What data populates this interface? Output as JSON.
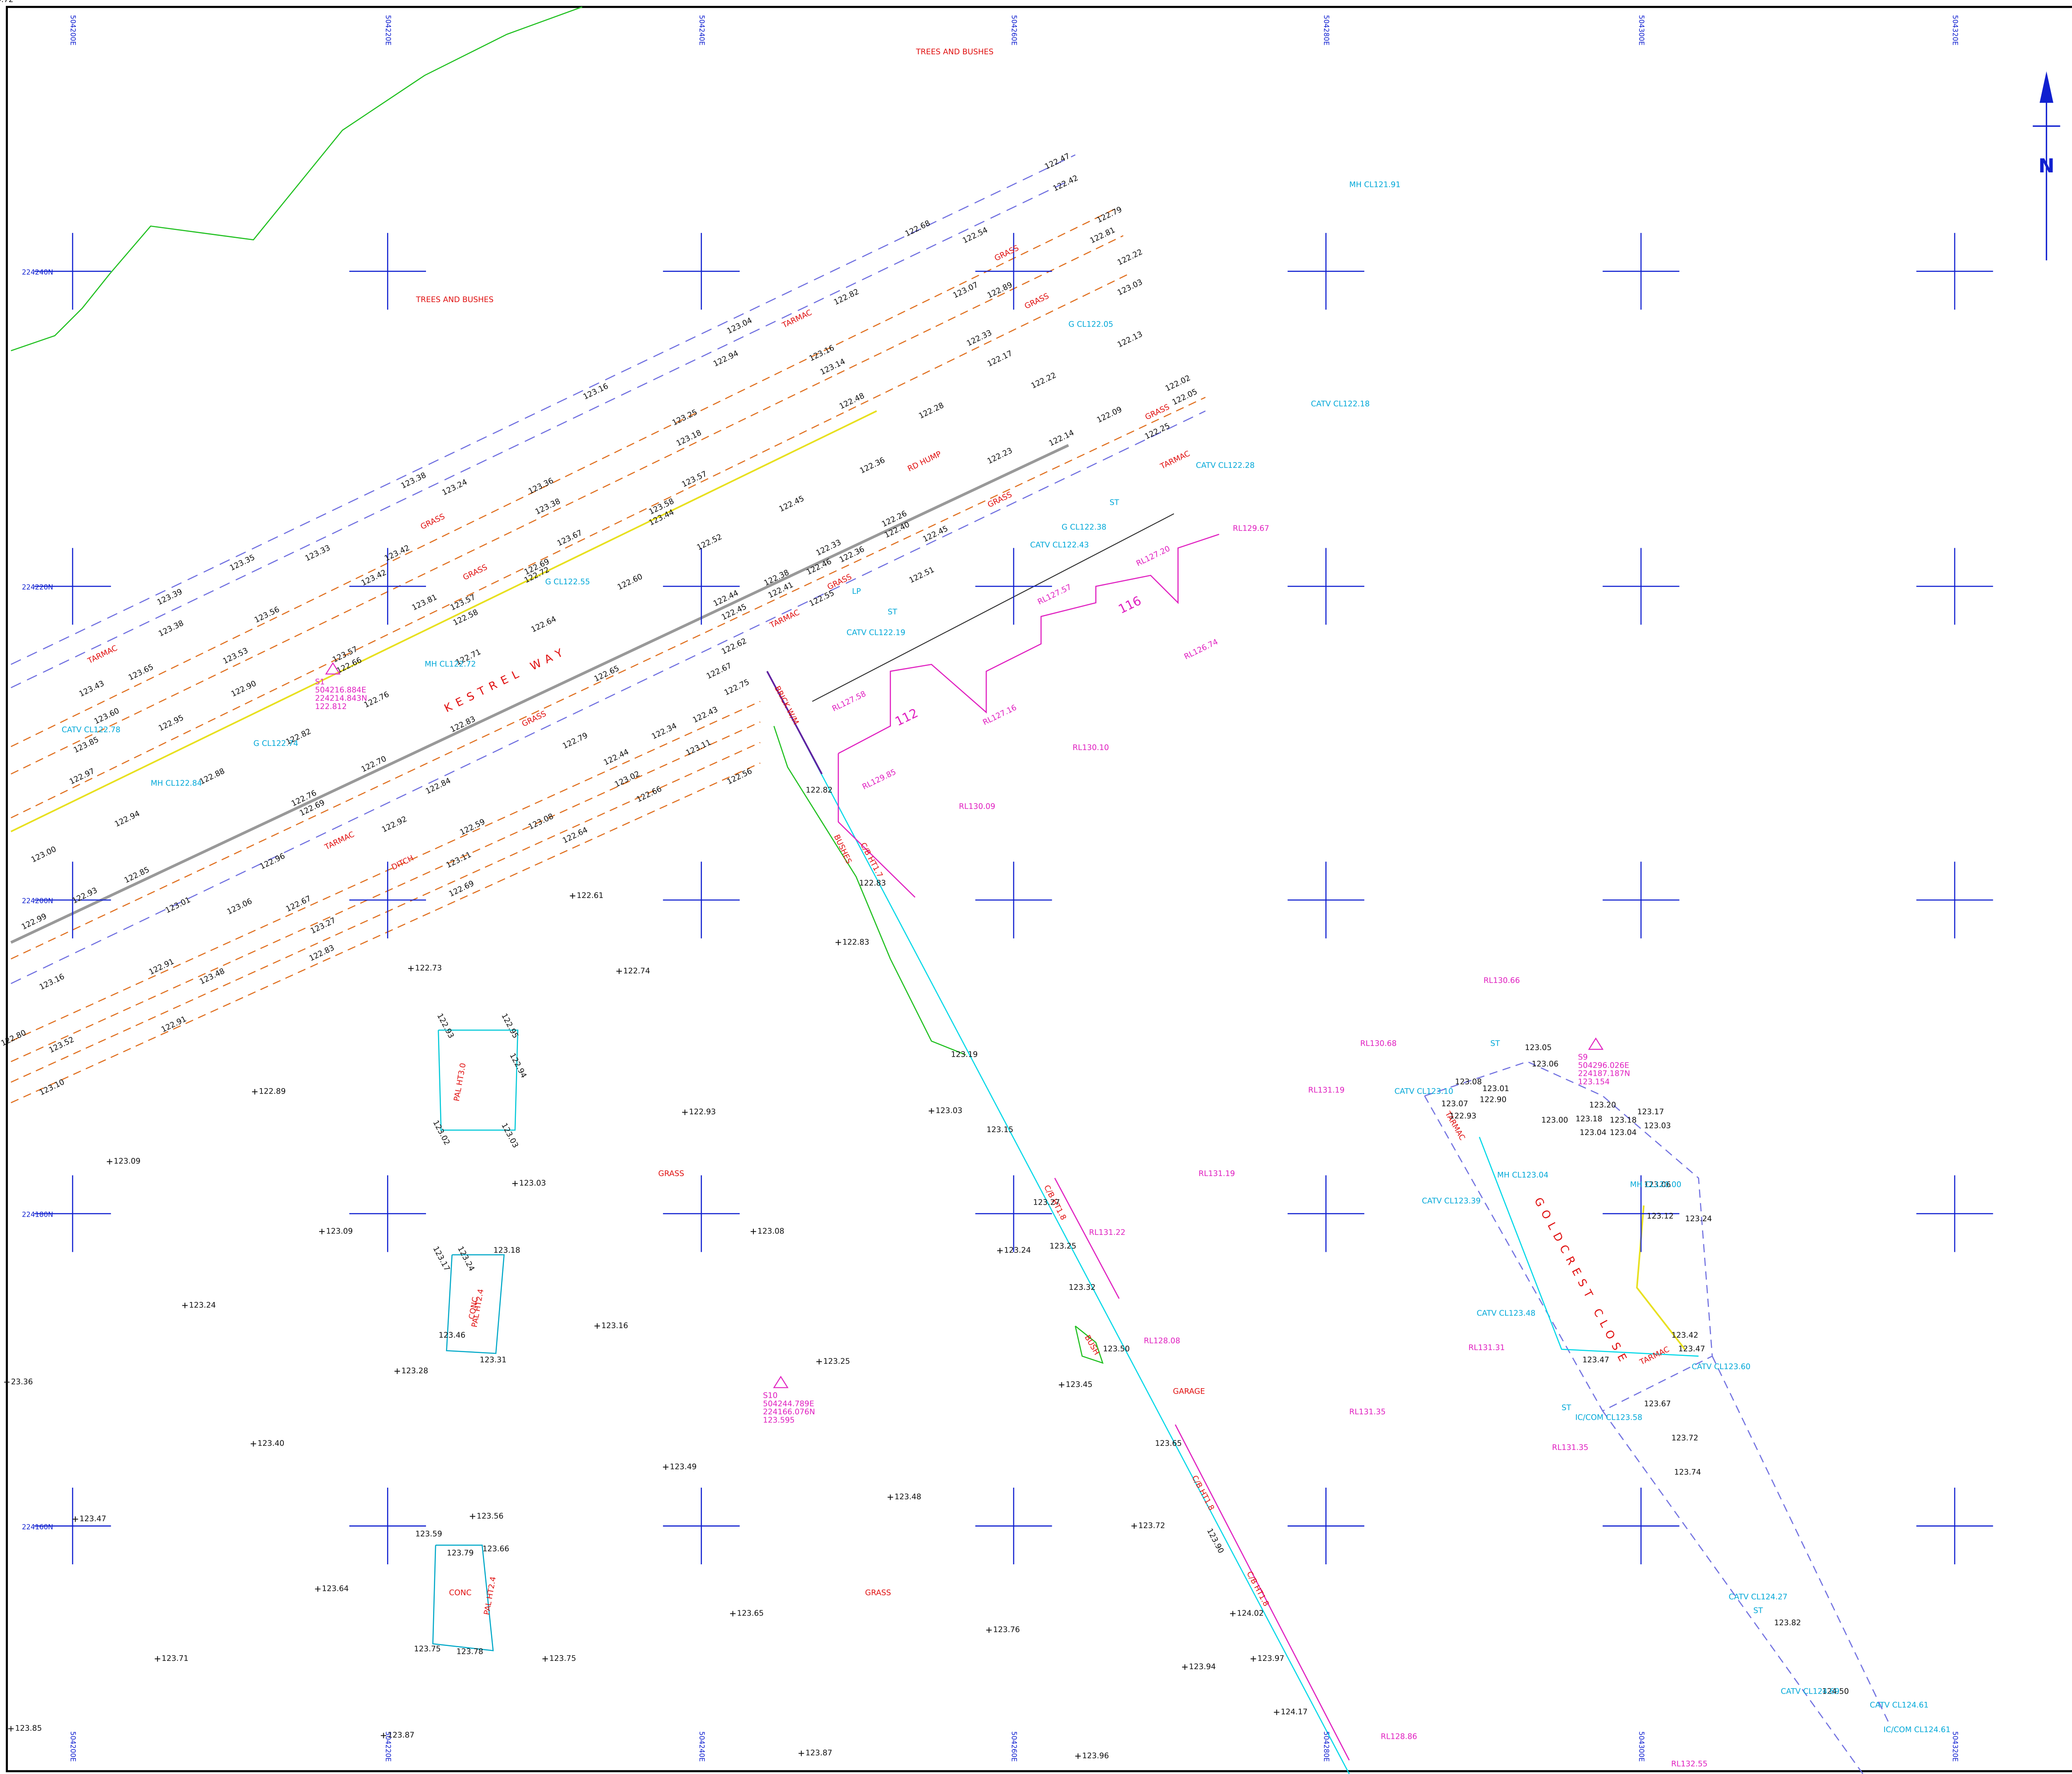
{
  "grid": {
    "eastings": [
      "504200E",
      "504220E",
      "504240E",
      "504260E",
      "504280E",
      "504300E",
      "504320E"
    ],
    "northings": [
      "224240N",
      "224220N",
      "224200N",
      "224180N",
      "224160N"
    ]
  },
  "north": "N",
  "road_names": [
    "KESTREL WAY",
    "GOLDCREST CLOSE"
  ],
  "area_labels": [
    "TREES AND BUSHES",
    "TREES AND BUSHES",
    "TARMAC",
    "GRASS",
    "GRASS",
    "GRASS",
    "GRASS",
    "TARMAC",
    "TARMAC",
    "TARMAC",
    "GRASS",
    "GRASS",
    "RD HUMP",
    "GRASS",
    "TARMAC",
    "DITCH",
    "BUSHES",
    "GRASS",
    "GARAGE",
    "CONC",
    "CONC",
    "BUSH",
    "GRASS",
    "TARMAC",
    "TARMAC",
    "GRASS"
  ],
  "fence_labels": [
    "PAL HT3.0",
    "PAL HT2.4",
    "PAL HT2.4",
    "C/B HT1.7",
    "C/B HT1.8",
    "C/B HT1.8",
    "C/B HT1.8",
    "BRICK W/M"
  ],
  "spot_levels": [
    "122.47",
    "122.42",
    "122.79",
    "122.81",
    "122.22",
    "123.03",
    "122.54",
    "122.68",
    "123.07",
    "122.89",
    "122.82",
    "123.04",
    "122.94",
    "123.16",
    "123.14",
    "122.13",
    "122.17",
    "122.33",
    "122.22",
    "123.16",
    "123.25",
    "123.18",
    "123.38",
    "123.24",
    "123.36",
    "123.57",
    "123.58",
    "123.44",
    "123.38",
    "123.67",
    "123.35",
    "123.33",
    "123.42",
    "123.42",
    "123.39",
    "123.38",
    "123.56",
    "123.53",
    "123.65",
    "123.57",
    "122.66",
    "123.81",
    "123.57",
    "122.58",
    "122.69",
    "122.72",
    "122.64",
    "122.60",
    "122.52",
    "122.45",
    "122.38",
    "122.41",
    "122.44",
    "122.45",
    "122.62",
    "122.67",
    "122.75",
    "122.51",
    "122.45",
    "122.40",
    "122.26",
    "122.33",
    "122.36",
    "122.46",
    "122.55",
    "122.48",
    "122.36",
    "122.28",
    "122.23",
    "122.14",
    "122.09",
    "122.02",
    "122.05",
    "122.25",
    "123.43",
    "123.60",
    "123.85",
    "122.90",
    "122.95",
    "122.97",
    "122.88",
    "122.94",
    "123.00",
    "122.93",
    "122.99",
    "122.85",
    "123.01",
    "122.71",
    "122.76",
    "122.82",
    "122.83",
    "122.70",
    "122.76",
    "122.69",
    "122.84",
    "122.92",
    "122.96",
    "123.06",
    "123.16",
    "122.91",
    "122.91",
    "123.48",
    "122.80",
    "123.52",
    "123.10",
    "123.27",
    "122.83",
    "122.67",
    "123.11",
    "122.69",
    "123.08",
    "122.64",
    "122.59",
    "122.79",
    "122.44",
    "123.02",
    "122.66",
    "122.34",
    "123.11",
    "122.43",
    "122.65",
    "122.56",
    "122.82",
    "122.83",
    "123.19",
    "123.15",
    "123.27",
    "123.25",
    "123.32",
    "123.50",
    "123.65",
    "123.90",
    "122.93",
    "122.95",
    "122.94",
    "123.02",
    "123.03",
    "123.17",
    "123.24",
    "123.18",
    "123.46",
    "123.31",
    "123.59",
    "123.79",
    "123.66",
    "123.75",
    "123.78",
    "123.05",
    "123.06",
    "123.07",
    "123.08",
    "122.93",
    "123.01",
    "122.90",
    "123.00",
    "123.18",
    "123.04",
    "123.18",
    "123.04",
    "123.17",
    "123.03",
    "123.20",
    "123.06",
    "123.12",
    "123.24",
    "123.42",
    "123.47",
    "123.47",
    "123.67",
    "123.72",
    "123.74",
    "123.82",
    "124.50",
    "124.72"
  ],
  "ground_levels": [
    "122.61",
    "122.83",
    "122.73",
    "122.74",
    "122.89",
    "122.93",
    "123.03",
    "123.09",
    "123.03",
    "123.09",
    "123.08",
    "123.24",
    "123.24",
    "123.16",
    "123.28",
    "123.25",
    "123.45",
    "123.40",
    "123.49",
    "123.48",
    "123.47",
    "123.56",
    "123.72",
    "123.64",
    "123.65",
    "123.76",
    "123.71",
    "123.75",
    "123.94",
    "123.97",
    "124.02",
    "124.17",
    "123.87",
    "123.87",
    "123.96",
    "123.85",
    "23.36"
  ],
  "utilities": [
    "MH CL121.91",
    "CATV CL122.18",
    "G CL122.05",
    "CATV CL122.28",
    "G CL122.38",
    "CATV CL122.43",
    "CATV CL122.19",
    "MH CL122.72",
    "MH CL122.84",
    "G CL122.74",
    "CATV CL122.78",
    "G CL122.55",
    "CATV CL123.10",
    "MH CL123.04",
    "CATV CL123.39",
    "CATV CL123.48",
    "MH CL120.00",
    "CATV CL123.60",
    "IC/COM CL123.58",
    "CATV CL124.27",
    "CATV CL124.69",
    "CATV CL124.61",
    "IC/COM CL124.61",
    "LP",
    "ST",
    "ST",
    "ST",
    "ST",
    "ST"
  ],
  "reduced_levels": [
    "RL129.67",
    "RL127.20",
    "RL127.57",
    "RL126.74",
    "RL127.58",
    "RL127.16",
    "RL130.10",
    "RL129.85",
    "RL130.09",
    "RL130.66",
    "RL130.68",
    "RL131.19",
    "RL131.19",
    "RL131.22",
    "RL128.08",
    "RL131.31",
    "RL131.35",
    "RL131.35",
    "RL128.86",
    "RL132.55"
  ],
  "plot_numbers": [
    "112",
    "116"
  ],
  "stations": [
    {
      "name": "S1",
      "easting": "504216.884E",
      "northing": "224214.843N",
      "level": "122.812"
    },
    {
      "name": "S10",
      "easting": "504244.789E",
      "northing": "224166.076N",
      "level": "123.595"
    },
    {
      "name": "S9",
      "easting": "504296.026E",
      "northing": "224187.187N",
      "level": "123.154"
    }
  ]
}
